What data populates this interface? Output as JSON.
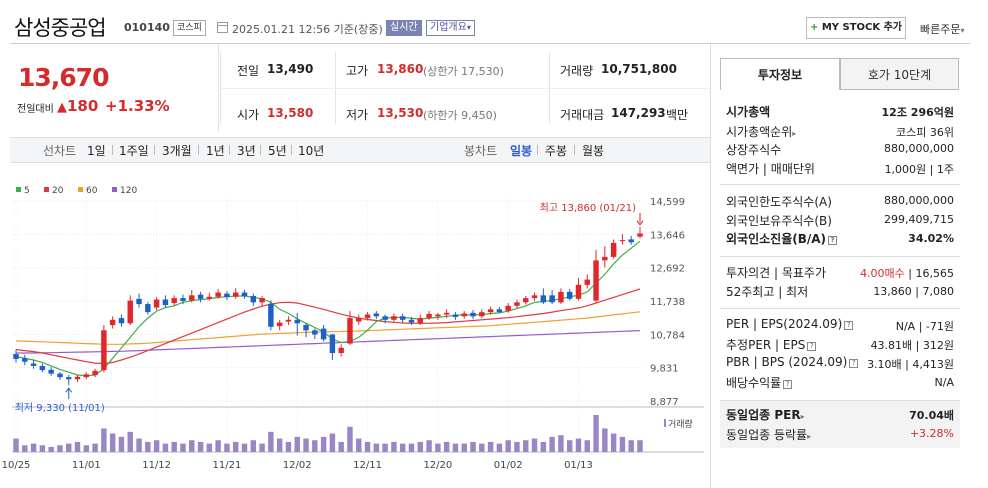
{
  "header": {
    "stock_name": "삼성중공업",
    "stock_code": "010140",
    "market": "코스피",
    "datetime": "2025.01.21 12:56 기준(장중)",
    "realtime_label": "실시간",
    "overview_label": "기업개요",
    "mystock_plus": "+",
    "mystock_label": "MY STOCK 추가",
    "quick_order_label": "빠른주문"
  },
  "price": {
    "current": "13,670",
    "prev_diff_label": "전일대비",
    "diff": "180",
    "diff_pct": "+1.33%"
  },
  "quote": {
    "prev_close_label": "전일",
    "prev_close": "13,490",
    "high_label": "고가",
    "high": "13,860",
    "upper_limit": "(상한가 17,530)",
    "volume_label": "거래량",
    "volume": "10,751,800",
    "open_label": "시가",
    "open": "13,580",
    "low_label": "저가",
    "low": "13,530",
    "lower_limit": "(하한가 9,450)",
    "amount_label": "거래대금",
    "amount": "147,293",
    "amount_unit": "백만"
  },
  "period_bar": {
    "line_chart_label": "선차트",
    "line_periods": [
      "1일",
      "1주일",
      "3개월",
      "1년",
      "3년",
      "5년",
      "10년"
    ],
    "candle_chart_label": "봉차트",
    "candle_periods": [
      "일봉",
      "주봉",
      "월봉"
    ],
    "active_candle": "일봉"
  },
  "chart_data": {
    "type": "candlestick",
    "legend": [
      {
        "name": "5",
        "color": "#3cb043"
      },
      {
        "name": "20",
        "color": "#e0393e"
      },
      {
        "name": "60",
        "color": "#f0a030"
      },
      {
        "name": "120",
        "color": "#9a5bc7"
      }
    ],
    "y_ticks": [
      "14,599",
      "13,646",
      "12,692",
      "11,738",
      "10,784",
      "9,831",
      "8,877"
    ],
    "ylim": [
      8877,
      14599
    ],
    "x_ticks": [
      "10/25",
      "11/01",
      "11/12",
      "11/21",
      "12/02",
      "12/11",
      "12/20",
      "01/02",
      "01/13"
    ],
    "x_tick_index": [
      0,
      8,
      16,
      24,
      32,
      40,
      48,
      56,
      64
    ],
    "high_annotation": "최고 13,860 (01/21)",
    "low_annotation": "최저 9,330 (11/01)",
    "volume_label": "거래량",
    "candles": [
      {
        "o": 10220,
        "c": 10080,
        "h": 10350,
        "l": 9980
      },
      {
        "o": 10100,
        "c": 10000,
        "h": 10200,
        "l": 9900
      },
      {
        "o": 9950,
        "c": 9880,
        "h": 10050,
        "l": 9800
      },
      {
        "o": 9880,
        "c": 9760,
        "h": 9950,
        "l": 9700
      },
      {
        "o": 9770,
        "c": 9660,
        "h": 9850,
        "l": 9600
      },
      {
        "o": 9660,
        "c": 9560,
        "h": 9700,
        "l": 9480
      },
      {
        "o": 9560,
        "c": 9500,
        "h": 9620,
        "l": 9330
      },
      {
        "o": 9500,
        "c": 9570,
        "h": 9620,
        "l": 9420
      },
      {
        "o": 9560,
        "c": 9640,
        "h": 9700,
        "l": 9500
      },
      {
        "o": 9620,
        "c": 9740,
        "h": 9800,
        "l": 9560
      },
      {
        "o": 9760,
        "c": 10900,
        "h": 11050,
        "l": 9700
      },
      {
        "o": 11050,
        "c": 11200,
        "h": 11300,
        "l": 10950
      },
      {
        "o": 11250,
        "c": 11100,
        "h": 11350,
        "l": 11000
      },
      {
        "o": 11100,
        "c": 11750,
        "h": 11900,
        "l": 11050
      },
      {
        "o": 11800,
        "c": 11650,
        "h": 11950,
        "l": 11550
      },
      {
        "o": 11650,
        "c": 11420,
        "h": 11700,
        "l": 11350
      },
      {
        "o": 11550,
        "c": 11780,
        "h": 11850,
        "l": 11480
      },
      {
        "o": 11780,
        "c": 11620,
        "h": 11900,
        "l": 11560
      },
      {
        "o": 11680,
        "c": 11820,
        "h": 11900,
        "l": 11600
      },
      {
        "o": 11820,
        "c": 11740,
        "h": 11920,
        "l": 11650
      },
      {
        "o": 11760,
        "c": 11900,
        "h": 12050,
        "l": 11700
      },
      {
        "o": 11920,
        "c": 11800,
        "h": 12000,
        "l": 11700
      },
      {
        "o": 11800,
        "c": 11860,
        "h": 11980,
        "l": 11750
      },
      {
        "o": 11860,
        "c": 11980,
        "h": 12080,
        "l": 11800
      },
      {
        "o": 11950,
        "c": 11850,
        "h": 12020,
        "l": 11760
      },
      {
        "o": 11860,
        "c": 11980,
        "h": 12100,
        "l": 11800
      },
      {
        "o": 11980,
        "c": 11880,
        "h": 12050,
        "l": 11800
      },
      {
        "o": 11880,
        "c": 11700,
        "h": 11950,
        "l": 11600
      },
      {
        "o": 11700,
        "c": 11820,
        "h": 11880,
        "l": 11600
      },
      {
        "o": 11660,
        "c": 11000,
        "h": 11750,
        "l": 10900
      },
      {
        "o": 11020,
        "c": 11120,
        "h": 11200,
        "l": 10900
      },
      {
        "o": 11150,
        "c": 11200,
        "h": 11300,
        "l": 11050
      },
      {
        "o": 11200,
        "c": 11100,
        "h": 11400,
        "l": 10750
      },
      {
        "o": 11050,
        "c": 10900,
        "h": 11100,
        "l": 10700
      },
      {
        "o": 10900,
        "c": 10780,
        "h": 10950,
        "l": 10650
      },
      {
        "o": 10950,
        "c": 10640,
        "h": 11050,
        "l": 10580
      },
      {
        "o": 10780,
        "c": 10250,
        "h": 10800,
        "l": 10050
      },
      {
        "o": 10250,
        "c": 10400,
        "h": 10500,
        "l": 10150
      },
      {
        "o": 10520,
        "c": 11250,
        "h": 11450,
        "l": 10480
      },
      {
        "o": 11150,
        "c": 11250,
        "h": 11350,
        "l": 11050
      },
      {
        "o": 11250,
        "c": 11350,
        "h": 11420,
        "l": 11180
      },
      {
        "o": 11380,
        "c": 11300,
        "h": 11450,
        "l": 11220
      },
      {
        "o": 11300,
        "c": 11200,
        "h": 11350,
        "l": 11100
      },
      {
        "o": 11200,
        "c": 11300,
        "h": 11380,
        "l": 11150
      },
      {
        "o": 11300,
        "c": 11200,
        "h": 11380,
        "l": 11120
      },
      {
        "o": 11200,
        "c": 11120,
        "h": 11280,
        "l": 11050
      },
      {
        "o": 11100,
        "c": 11250,
        "h": 11350,
        "l": 11050
      },
      {
        "o": 11250,
        "c": 11370,
        "h": 11450,
        "l": 11200
      },
      {
        "o": 11300,
        "c": 11350,
        "h": 11400,
        "l": 11200
      },
      {
        "o": 11350,
        "c": 11400,
        "h": 11500,
        "l": 11250
      },
      {
        "o": 11350,
        "c": 11280,
        "h": 11420,
        "l": 11200
      },
      {
        "o": 11300,
        "c": 11380,
        "h": 11450,
        "l": 11230
      },
      {
        "o": 11400,
        "c": 11300,
        "h": 11480,
        "l": 11220
      },
      {
        "o": 11300,
        "c": 11420,
        "h": 11500,
        "l": 11250
      },
      {
        "o": 11420,
        "c": 11500,
        "h": 11580,
        "l": 11350
      },
      {
        "o": 11500,
        "c": 11420,
        "h": 11560,
        "l": 11380
      },
      {
        "o": 11450,
        "c": 11600,
        "h": 11680,
        "l": 11400
      },
      {
        "o": 11600,
        "c": 11700,
        "h": 11780,
        "l": 11520
      },
      {
        "o": 11700,
        "c": 11820,
        "h": 11880,
        "l": 11640
      },
      {
        "o": 11820,
        "c": 11900,
        "h": 11980,
        "l": 11740
      },
      {
        "o": 11900,
        "c": 11700,
        "h": 12100,
        "l": 11650
      },
      {
        "o": 11900,
        "c": 11700,
        "h": 12050,
        "l": 11650
      },
      {
        "o": 11700,
        "c": 12000,
        "h": 12100,
        "l": 11650
      },
      {
        "o": 12000,
        "c": 11800,
        "h": 12080,
        "l": 11750
      },
      {
        "o": 11800,
        "c": 12200,
        "h": 12400,
        "l": 11750
      },
      {
        "o": 12200,
        "c": 12350,
        "h": 12500,
        "l": 12100
      },
      {
        "o": 11750,
        "c": 12900,
        "h": 13200,
        "l": 11700
      },
      {
        "o": 12900,
        "c": 13000,
        "h": 13300,
        "l": 12700
      },
      {
        "o": 13000,
        "c": 13400,
        "h": 13500,
        "l": 12950
      },
      {
        "o": 13450,
        "c": 13480,
        "h": 13650,
        "l": 13350
      },
      {
        "o": 13500,
        "c": 13420,
        "h": 13600,
        "l": 13350
      },
      {
        "o": 13580,
        "c": 13670,
        "h": 13860,
        "l": 13530
      }
    ],
    "ma5": [
      10150,
      10100,
      10050,
      9980,
      9880,
      9780,
      9700,
      9620,
      9600,
      9620,
      9800,
      10100,
      10400,
      10700,
      11000,
      11250,
      11450,
      11550,
      11600,
      11700,
      11750,
      11780,
      11800,
      11840,
      11860,
      11880,
      11880,
      11840,
      11800,
      11700,
      11500,
      11380,
      11230,
      11100,
      10980,
      10850,
      10650,
      10550,
      10580,
      10700,
      10900,
      11150,
      11250,
      11270,
      11270,
      11240,
      11220,
      11250,
      11270,
      11300,
      11330,
      11340,
      11340,
      11350,
      11380,
      11400,
      11450,
      11520,
      11600,
      11700,
      11720,
      11760,
      11800,
      11860,
      11900,
      12000,
      12250,
      12500,
      12800,
      13050,
      13250,
      13450
    ],
    "ma20": [
      10350,
      10320,
      10290,
      10250,
      10200,
      10150,
      10100,
      10050,
      10000,
      9960,
      9950,
      9980,
      10050,
      10130,
      10220,
      10320,
      10420,
      10520,
      10620,
      10720,
      10820,
      10920,
      11020,
      11120,
      11220,
      11320,
      11420,
      11510,
      11590,
      11650,
      11690,
      11700,
      11680,
      11620,
      11560,
      11500,
      11430,
      11360,
      11300,
      11250,
      11210,
      11180,
      11150,
      11130,
      11110,
      11100,
      11100,
      11100,
      11110,
      11120,
      11140,
      11160,
      11180,
      11200,
      11220,
      11240,
      11260,
      11290,
      11320,
      11350,
      11380,
      11420,
      11460,
      11500,
      11540,
      11600,
      11680,
      11760,
      11840,
      11920,
      12000,
      12080
    ],
    "ma60": [
      10600,
      10590,
      10580,
      10570,
      10560,
      10550,
      10540,
      10530,
      10520,
      10510,
      10500,
      10500,
      10500,
      10510,
      10520,
      10530,
      10550,
      10570,
      10590,
      10610,
      10630,
      10650,
      10670,
      10690,
      10710,
      10730,
      10750,
      10770,
      10790,
      10800,
      10810,
      10820,
      10830,
      10840,
      10850,
      10855,
      10860,
      10865,
      10870,
      10880,
      10890,
      10900,
      10910,
      10920,
      10930,
      10940,
      10950,
      10960,
      10970,
      10980,
      10990,
      11000,
      11010,
      11020,
      11030,
      11050,
      11070,
      11090,
      11110,
      11130,
      11150,
      11170,
      11190,
      11210,
      11230,
      11250,
      11280,
      11310,
      11340,
      11370,
      11400,
      11430
    ],
    "ma120": [
      10250,
      10250,
      10250,
      10255,
      10260,
      10265,
      10270,
      10275,
      10280,
      10285,
      10290,
      10295,
      10300,
      10310,
      10320,
      10330,
      10340,
      10350,
      10360,
      10370,
      10380,
      10390,
      10400,
      10410,
      10420,
      10430,
      10440,
      10450,
      10460,
      10470,
      10480,
      10490,
      10500,
      10510,
      10520,
      10530,
      10540,
      10550,
      10560,
      10570,
      10580,
      10590,
      10600,
      10610,
      10620,
      10630,
      10640,
      10650,
      10660,
      10670,
      10680,
      10690,
      10700,
      10710,
      10720,
      10730,
      10740,
      10750,
      10760,
      10770,
      10780,
      10790,
      10800,
      10810,
      10820,
      10830,
      10840,
      10850,
      10860,
      10870,
      10880,
      10890
    ],
    "volume": [
      8,
      4,
      5,
      4,
      3,
      4,
      5,
      6,
      4,
      5,
      14,
      11,
      9,
      12,
      8,
      6,
      7,
      5,
      6,
      5,
      7,
      6,
      5,
      7,
      5,
      6,
      5,
      7,
      5,
      12,
      8,
      6,
      9,
      8,
      7,
      9,
      11,
      6,
      15,
      8,
      6,
      5,
      5,
      6,
      5,
      5,
      6,
      7,
      5,
      6,
      5,
      5,
      6,
      5,
      6,
      5,
      7,
      6,
      7,
      8,
      6,
      9,
      10,
      7,
      8,
      7,
      22,
      14,
      11,
      9,
      7,
      7
    ]
  },
  "right_panel": {
    "tab_invest": "투자정보",
    "tab_hoga": "호가 10단계",
    "market_cap_label": "시가총액",
    "market_cap": "12조 296억원",
    "cap_rank_label": "시가총액순위",
    "cap_rank": "코스피 36위",
    "shares_label": "상장주식수",
    "shares": "880,000,000",
    "par_label": "액면가 | 매매단위",
    "par": "1,000원 | 1주",
    "foreign_limit_label": "외국인한도주식수(A)",
    "foreign_limit": "880,000,000",
    "foreign_hold_label": "외국인보유주식수(B)",
    "foreign_hold": "299,409,715",
    "foreign_ratio_label": "외국인소진율(B/A)",
    "foreign_ratio": "34.02%",
    "opinion_label": "투자의견 | 목표주가",
    "opinion": "4.00매수",
    "target": "16,565",
    "wk52_label": "52주최고 | 최저",
    "wk52": "13,860 | 7,080",
    "per_eps_label": "PER | EPS(2024.09)",
    "per_eps": "N/A | -71원",
    "est_per_label": "추정PER | EPS",
    "est_per": "43.81배 | 312원",
    "pbr_bps_label": "PBR | BPS (2024.09)",
    "pbr_bps": "3.10배 | 4,413원",
    "dividend_label": "배당수익률",
    "dividend": "N/A",
    "sector_per_label": "동일업종 PER",
    "sector_per": "70.04배",
    "sector_chg_label": "동일업종 등락률",
    "sector_chg": "+3.28%",
    "info_icon": "?"
  }
}
